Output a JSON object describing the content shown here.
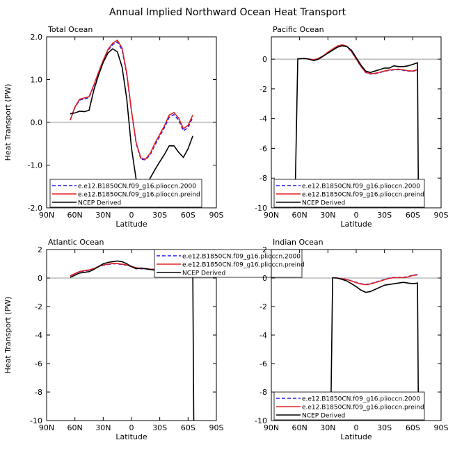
{
  "figure": {
    "title": "Annual Implied Northward Ocean Heat Transport"
  },
  "colors": {
    "series_2000": "#1a1aff",
    "series_preind": "#e02020",
    "series_ncep": "#000000",
    "zero_line": "#999999"
  },
  "chart_data": [
    {
      "type": "line",
      "title": "Total Ocean",
      "xlabel": "Latitude",
      "ylabel": "Heat Transport (PW)",
      "xlim": [
        -90,
        90
      ],
      "ylim": [
        -2,
        2
      ],
      "xticks": [
        -90,
        -60,
        -30,
        0,
        30,
        60,
        90
      ],
      "xticklabels": [
        "90N",
        "60N",
        "30N",
        "0",
        "30S",
        "60S",
        "90S"
      ],
      "yticks": [
        -2,
        -1,
        0,
        1,
        2
      ],
      "yticklabels": [
        "-2.0",
        "-1.0",
        "0.0",
        "1.0",
        "2.0"
      ],
      "legend_position": "bottom-left",
      "series": [
        {
          "name": "e.e12.B1850CN.f09_g16.plioccn.2000",
          "style": "dashed",
          "color": "#1a1aff",
          "x": [
            -65,
            -60,
            -55,
            -50,
            -45,
            -40,
            -35,
            -30,
            -25,
            -20,
            -15,
            -10,
            -5,
            0,
            5,
            10,
            15,
            20,
            25,
            30,
            35,
            40,
            45,
            50,
            55,
            60,
            65
          ],
          "y": [
            0.05,
            0.35,
            0.52,
            0.55,
            0.58,
            0.85,
            1.15,
            1.42,
            1.68,
            1.82,
            1.88,
            1.7,
            1.12,
            0.25,
            -0.5,
            -0.86,
            -0.88,
            -0.75,
            -0.52,
            -0.32,
            -0.12,
            0.12,
            0.18,
            0.05,
            -0.2,
            -0.12,
            0.12
          ]
        },
        {
          "name": "e.e12.B1850CN.f09_g16.plioccn.preind",
          "style": "solid",
          "color": "#e02020",
          "x": [
            -65,
            -60,
            -55,
            -50,
            -45,
            -40,
            -35,
            -30,
            -25,
            -20,
            -15,
            -10,
            -5,
            0,
            5,
            10,
            15,
            20,
            25,
            30,
            35,
            40,
            45,
            50,
            55,
            60,
            65
          ],
          "y": [
            0.05,
            0.36,
            0.54,
            0.57,
            0.6,
            0.87,
            1.17,
            1.45,
            1.7,
            1.85,
            1.92,
            1.74,
            1.15,
            0.27,
            -0.48,
            -0.84,
            -0.86,
            -0.72,
            -0.48,
            -0.28,
            -0.08,
            0.17,
            0.23,
            0.1,
            -0.15,
            -0.07,
            0.17
          ]
        },
        {
          "name": "NCEP Derived",
          "style": "solid",
          "color": "#000000",
          "x": [
            -65,
            -60,
            -55,
            -50,
            -45,
            -40,
            -35,
            -30,
            -25,
            -20,
            -15,
            -10,
            -5,
            0,
            5,
            10,
            15,
            20,
            25,
            30,
            35,
            40,
            45,
            50,
            55,
            60,
            65
          ],
          "y": [
            0.2,
            0.22,
            0.26,
            0.25,
            0.28,
            0.75,
            1.1,
            1.4,
            1.62,
            1.72,
            1.65,
            1.3,
            0.55,
            -0.6,
            -1.35,
            -1.62,
            -1.5,
            -1.3,
            -1.1,
            -0.92,
            -0.75,
            -0.55,
            -0.55,
            -0.7,
            -0.82,
            -0.62,
            -0.32
          ]
        }
      ]
    },
    {
      "type": "line",
      "title": "Pacific Ocean",
      "xlabel": "Latitude",
      "ylabel": "",
      "xlim": [
        -90,
        90
      ],
      "ylim": [
        -10,
        1.5
      ],
      "xticks": [
        -90,
        -60,
        -30,
        0,
        30,
        60,
        90
      ],
      "xticklabels": [
        "90N",
        "60N",
        "30N",
        "0",
        "30S",
        "60S",
        "90S"
      ],
      "yticks": [
        -10,
        -8,
        -6,
        -4,
        -2,
        0
      ],
      "yticklabels": [
        "-10",
        "-8",
        "-6",
        "-4",
        "-2",
        "0"
      ],
      "legend_position": "bottom-left",
      "series": [
        {
          "name": "e.e12.B1850CN.f09_g16.plioccn.2000",
          "style": "dashed",
          "color": "#1a1aff",
          "x": [
            -62,
            -55,
            -50,
            -45,
            -40,
            -35,
            -30,
            -25,
            -20,
            -15,
            -10,
            -5,
            0,
            5,
            10,
            15,
            20,
            25,
            30,
            35,
            40,
            45,
            50,
            55,
            60,
            65
          ],
          "y": [
            0.02,
            0.05,
            0.0,
            -0.05,
            0.05,
            0.2,
            0.45,
            0.65,
            0.85,
            0.95,
            0.85,
            0.5,
            0.0,
            -0.5,
            -0.9,
            -1.0,
            -0.98,
            -0.9,
            -0.82,
            -0.75,
            -0.72,
            -0.7,
            -0.75,
            -0.8,
            -0.82,
            -0.72
          ]
        },
        {
          "name": "e.e12.B1850CN.f09_g16.plioccn.preind",
          "style": "solid",
          "color": "#e02020",
          "x": [
            -62,
            -55,
            -50,
            -45,
            -40,
            -35,
            -30,
            -25,
            -20,
            -15,
            -10,
            -5,
            0,
            5,
            10,
            15,
            20,
            25,
            30,
            35,
            40,
            45,
            50,
            55,
            60,
            65
          ],
          "y": [
            0.02,
            0.05,
            0.0,
            -0.05,
            0.06,
            0.22,
            0.47,
            0.68,
            0.88,
            0.97,
            0.87,
            0.52,
            0.02,
            -0.48,
            -0.88,
            -0.98,
            -0.95,
            -0.88,
            -0.8,
            -0.73,
            -0.7,
            -0.68,
            -0.72,
            -0.78,
            -0.8,
            -0.7
          ]
        },
        {
          "name": "NCEP Derived",
          "style": "solid",
          "color": "#000000",
          "x": [
            -65,
            -62,
            -55,
            -50,
            -45,
            -40,
            -35,
            -30,
            -25,
            -20,
            -15,
            -10,
            -5,
            0,
            5,
            10,
            15,
            20,
            25,
            30,
            35,
            40,
            45,
            50,
            55,
            60,
            65,
            66
          ],
          "y": [
            -10,
            0.02,
            0.05,
            0.0,
            -0.1,
            0.0,
            0.2,
            0.4,
            0.6,
            0.8,
            0.9,
            0.85,
            0.6,
            0.1,
            -0.4,
            -0.8,
            -0.9,
            -0.8,
            -0.7,
            -0.6,
            -0.6,
            -0.45,
            -0.5,
            -0.5,
            -0.45,
            -0.35,
            -0.25,
            -10
          ]
        }
      ]
    },
    {
      "type": "line",
      "title": "Atlantic Ocean",
      "xlabel": "Latitude",
      "ylabel": "Heat Transport (PW)",
      "xlim": [
        -90,
        90
      ],
      "ylim": [
        -10,
        2
      ],
      "xticks": [
        -90,
        -60,
        -30,
        0,
        30,
        60,
        90
      ],
      "xticklabels": [
        "90N",
        "60N",
        "30N",
        "0",
        "30S",
        "60S",
        "90S"
      ],
      "yticks": [
        -10,
        -8,
        -6,
        -4,
        -2,
        0,
        2
      ],
      "yticklabels": [
        "-10",
        "-8",
        "-6",
        "-4",
        "-2",
        "0",
        "2"
      ],
      "legend_position": "top-right",
      "series": [
        {
          "name": "e.e12.B1850CN.f09_g16.plioccn.2000",
          "style": "dashed",
          "color": "#1a1aff",
          "x": [
            -65,
            -60,
            -55,
            -50,
            -45,
            -40,
            -35,
            -30,
            -25,
            -20,
            -15,
            -10,
            -5,
            0,
            5,
            10,
            15,
            20,
            25,
            30,
            35,
            40,
            45,
            50,
            55,
            60,
            65
          ],
          "y": [
            0.15,
            0.3,
            0.45,
            0.5,
            0.55,
            0.65,
            0.8,
            0.9,
            0.95,
            1.0,
            1.0,
            0.95,
            0.9,
            0.8,
            0.7,
            0.65,
            0.65,
            0.6,
            0.6,
            0.6,
            0.65,
            0.7,
            0.75,
            0.7,
            0.6,
            0.6,
            0.62
          ]
        },
        {
          "name": "e.e12.B1850CN.f09_g16.plioccn.preind",
          "style": "solid",
          "color": "#e02020",
          "x": [
            -65,
            -60,
            -55,
            -50,
            -45,
            -40,
            -35,
            -30,
            -25,
            -20,
            -15,
            -10,
            -5,
            0,
            5,
            10,
            15,
            20,
            25,
            30,
            35,
            40,
            45,
            50,
            55,
            60,
            65
          ],
          "y": [
            0.15,
            0.31,
            0.46,
            0.52,
            0.57,
            0.67,
            0.82,
            0.92,
            0.97,
            1.02,
            1.02,
            0.97,
            0.92,
            0.82,
            0.72,
            0.67,
            0.67,
            0.62,
            0.62,
            0.62,
            0.67,
            0.72,
            0.77,
            0.72,
            0.62,
            0.62,
            0.64
          ]
        },
        {
          "name": "NCEP Derived",
          "style": "solid",
          "color": "#000000",
          "x": [
            -65,
            -60,
            -55,
            -50,
            -45,
            -40,
            -35,
            -30,
            -25,
            -20,
            -15,
            -10,
            -5,
            0,
            5,
            10,
            15,
            20,
            25,
            30,
            35,
            40,
            45,
            50,
            55,
            60,
            65,
            66,
            67
          ],
          "y": [
            0.05,
            0.2,
            0.35,
            0.4,
            0.45,
            0.6,
            0.8,
            1.0,
            1.1,
            1.15,
            1.2,
            1.15,
            1.0,
            0.8,
            0.65,
            0.7,
            0.65,
            0.6,
            0.55,
            0.55,
            0.55,
            0.6,
            0.7,
            0.6,
            0.55,
            0.6,
            0.5,
            -10,
            -10
          ]
        }
      ]
    },
    {
      "type": "line",
      "title": "Indian Ocean",
      "xlabel": "Latitude",
      "ylabel": "",
      "xlim": [
        -90,
        90
      ],
      "ylim": [
        -10,
        2
      ],
      "xticks": [
        -90,
        -60,
        -30,
        0,
        30,
        60,
        90
      ],
      "xticklabels": [
        "90N",
        "60N",
        "30N",
        "0",
        "30S",
        "60S",
        "90S"
      ],
      "yticks": [
        -10,
        -8,
        -6,
        -4,
        -2,
        0,
        2
      ],
      "yticklabels": [
        "-10",
        "-8",
        "-6",
        "-4",
        "-2",
        "0",
        "2"
      ],
      "legend_position": "bottom-left",
      "series": [
        {
          "name": "e.e12.B1850CN.f09_g16.plioccn.2000",
          "style": "dashed",
          "color": "#1a1aff",
          "x": [
            -25,
            -20,
            -15,
            -10,
            -5,
            0,
            5,
            10,
            15,
            20,
            25,
            30,
            35,
            40,
            45,
            50,
            55,
            60,
            65
          ],
          "y": [
            0.02,
            0.0,
            -0.05,
            -0.1,
            -0.2,
            -0.3,
            -0.4,
            -0.45,
            -0.4,
            -0.3,
            -0.2,
            -0.1,
            0.0,
            0.05,
            0.05,
            0.05,
            0.1,
            0.2,
            0.25
          ]
        },
        {
          "name": "e.e12.B1850CN.f09_g16.plioccn.preind",
          "style": "solid",
          "color": "#e02020",
          "x": [
            -25,
            -20,
            -15,
            -10,
            -5,
            0,
            5,
            10,
            15,
            20,
            25,
            30,
            35,
            40,
            45,
            50,
            55,
            60,
            65
          ],
          "y": [
            0.02,
            0.0,
            -0.05,
            -0.1,
            -0.2,
            -0.32,
            -0.42,
            -0.47,
            -0.42,
            -0.32,
            -0.22,
            -0.12,
            -0.02,
            0.03,
            0.03,
            0.03,
            0.08,
            0.18,
            0.23
          ]
        },
        {
          "name": "NCEP Derived",
          "style": "solid",
          "color": "#000000",
          "x": [
            -27,
            -25,
            -20,
            -15,
            -10,
            -5,
            0,
            5,
            10,
            15,
            20,
            25,
            30,
            35,
            40,
            45,
            50,
            55,
            60,
            65,
            66
          ],
          "y": [
            -10,
            0.02,
            0.0,
            -0.1,
            -0.2,
            -0.4,
            -0.6,
            -0.85,
            -1.0,
            -0.95,
            -0.8,
            -0.65,
            -0.5,
            -0.45,
            -0.4,
            -0.35,
            -0.3,
            -0.35,
            -0.4,
            -0.35,
            -10
          ]
        }
      ]
    }
  ]
}
